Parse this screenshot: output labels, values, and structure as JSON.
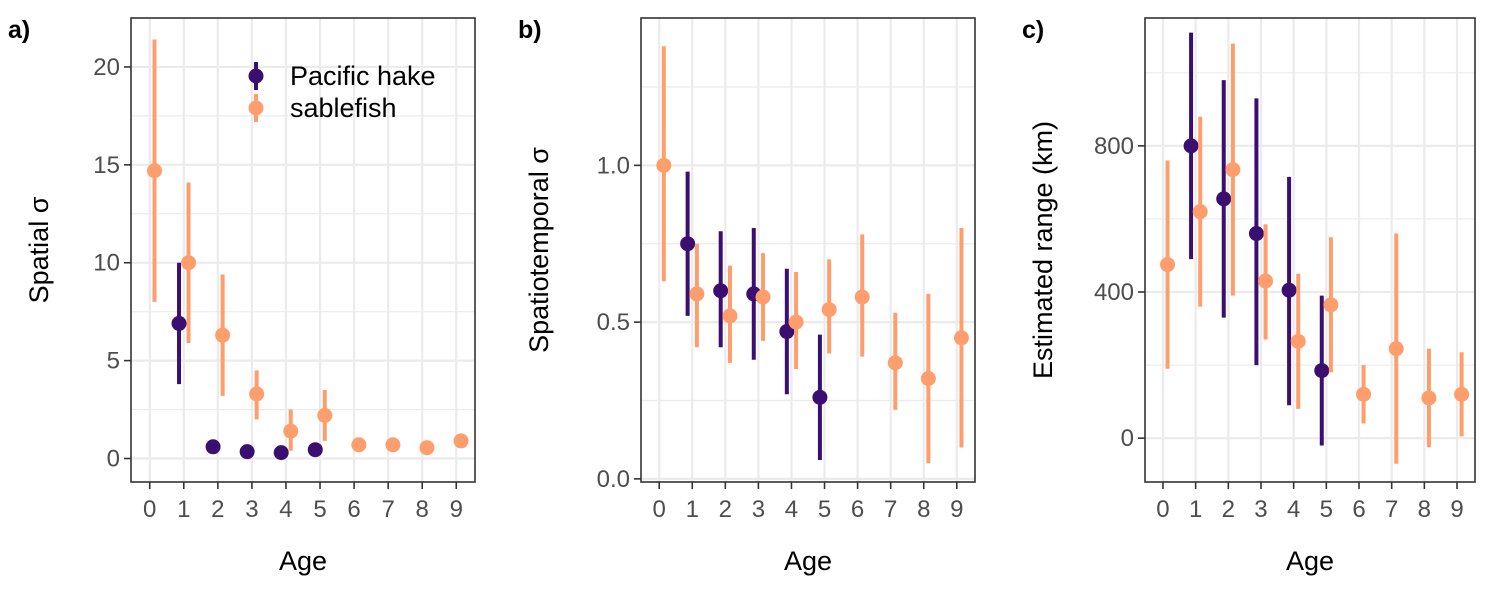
{
  "colors": {
    "hake": "#3b0f70",
    "sablefish": "#fd9e6c",
    "grid": "#ebebeb",
    "border": "#333333"
  },
  "legend": {
    "position": "top-right",
    "items": [
      {
        "label": "Pacific hake",
        "color": "#3b0f70"
      },
      {
        "label": "sablefish",
        "color": "#fd9e6c"
      }
    ]
  },
  "chart_data": [
    {
      "type": "scatter",
      "panel_label": "a)",
      "xlabel": "Age",
      "ylabel": "Spatial σ",
      "xlim": [
        -0.55,
        9.55
      ],
      "ylim": [
        -1.2,
        22.5
      ],
      "x_ticks": [
        "0",
        "1",
        "2",
        "3",
        "4",
        "5",
        "6",
        "7",
        "8",
        "9"
      ],
      "y_ticks": [
        {
          "value": 0,
          "label": "0"
        },
        {
          "value": 5,
          "label": "5"
        },
        {
          "value": 10,
          "label": "10"
        },
        {
          "value": 15,
          "label": "15"
        },
        {
          "value": 20,
          "label": "20"
        }
      ],
      "grid": true,
      "legend": true,
      "series": [
        {
          "name": "Pacific hake",
          "color": "#3b0f70",
          "points": [
            {
              "x": 1,
              "y": 6.9,
              "lo": 3.8,
              "hi": 10.0
            },
            {
              "x": 2,
              "y": 0.6
            },
            {
              "x": 3,
              "y": 0.35
            },
            {
              "x": 4,
              "y": 0.3
            },
            {
              "x": 5,
              "y": 0.45
            }
          ]
        },
        {
          "name": "sablefish",
          "color": "#fd9e6c",
          "points": [
            {
              "x": 0,
              "y": 14.7,
              "lo": 8.0,
              "hi": 21.4
            },
            {
              "x": 1,
              "y": 10.0,
              "lo": 5.9,
              "hi": 14.1
            },
            {
              "x": 2,
              "y": 6.3,
              "lo": 3.2,
              "hi": 9.4
            },
            {
              "x": 3,
              "y": 3.3,
              "lo": 2.0,
              "hi": 4.5
            },
            {
              "x": 4,
              "y": 1.4,
              "lo": 0.4,
              "hi": 2.5
            },
            {
              "x": 5,
              "y": 2.2,
              "lo": 0.9,
              "hi": 3.5
            },
            {
              "x": 6,
              "y": 0.7
            },
            {
              "x": 7,
              "y": 0.7
            },
            {
              "x": 8,
              "y": 0.55
            },
            {
              "x": 9,
              "y": 0.9
            }
          ]
        }
      ]
    },
    {
      "type": "scatter",
      "panel_label": "b)",
      "xlabel": "Age",
      "ylabel": "Spatiotemporal σ",
      "xlim": [
        -0.55,
        9.55
      ],
      "ylim": [
        -0.01,
        1.47
      ],
      "x_ticks": [
        "0",
        "1",
        "2",
        "3",
        "4",
        "5",
        "6",
        "7",
        "8",
        "9"
      ],
      "y_ticks": [
        {
          "value": 0.0,
          "label": "0.0"
        },
        {
          "value": 0.5,
          "label": "0.5"
        },
        {
          "value": 1.0,
          "label": "1.0"
        }
      ],
      "grid": true,
      "legend": false,
      "series": [
        {
          "name": "Pacific hake",
          "color": "#3b0f70",
          "points": [
            {
              "x": 1,
              "y": 0.75,
              "lo": 0.52,
              "hi": 0.98
            },
            {
              "x": 2,
              "y": 0.6,
              "lo": 0.42,
              "hi": 0.79
            },
            {
              "x": 3,
              "y": 0.59,
              "lo": 0.38,
              "hi": 0.8
            },
            {
              "x": 4,
              "y": 0.47,
              "lo": 0.27,
              "hi": 0.67
            },
            {
              "x": 5,
              "y": 0.26,
              "lo": 0.06,
              "hi": 0.46
            }
          ]
        },
        {
          "name": "sablefish",
          "color": "#fd9e6c",
          "points": [
            {
              "x": 0,
              "y": 1.0,
              "lo": 0.63,
              "hi": 1.38
            },
            {
              "x": 1,
              "y": 0.59,
              "lo": 0.42,
              "hi": 0.75
            },
            {
              "x": 2,
              "y": 0.52,
              "lo": 0.37,
              "hi": 0.68
            },
            {
              "x": 3,
              "y": 0.58,
              "lo": 0.44,
              "hi": 0.72
            },
            {
              "x": 4,
              "y": 0.5,
              "lo": 0.35,
              "hi": 0.66
            },
            {
              "x": 5,
              "y": 0.54,
              "lo": 0.4,
              "hi": 0.7
            },
            {
              "x": 6,
              "y": 0.58,
              "lo": 0.39,
              "hi": 0.78
            },
            {
              "x": 7,
              "y": 0.37,
              "lo": 0.22,
              "hi": 0.53
            },
            {
              "x": 8,
              "y": 0.32,
              "lo": 0.05,
              "hi": 0.59
            },
            {
              "x": 9,
              "y": 0.45,
              "lo": 0.1,
              "hi": 0.8
            }
          ]
        }
      ]
    },
    {
      "type": "scatter",
      "panel_label": "c)",
      "xlabel": "Age",
      "ylabel": "Estimated range (km)",
      "xlim": [
        -0.55,
        9.55
      ],
      "ylim": [
        -120,
        1150
      ],
      "x_ticks": [
        "0",
        "1",
        "2",
        "3",
        "4",
        "5",
        "6",
        "7",
        "8",
        "9"
      ],
      "y_ticks": [
        {
          "value": 0,
          "label": "0"
        },
        {
          "value": 400,
          "label": "400"
        },
        {
          "value": 800,
          "label": "800"
        }
      ],
      "grid": true,
      "legend": false,
      "series": [
        {
          "name": "Pacific hake",
          "color": "#3b0f70",
          "points": [
            {
              "x": 1,
              "y": 800,
              "lo": 490,
              "hi": 1110
            },
            {
              "x": 2,
              "y": 655,
              "lo": 330,
              "hi": 980
            },
            {
              "x": 3,
              "y": 560,
              "lo": 200,
              "hi": 930
            },
            {
              "x": 4,
              "y": 405,
              "lo": 90,
              "hi": 715
            },
            {
              "x": 5,
              "y": 185,
              "lo": -20,
              "hi": 390
            }
          ]
        },
        {
          "name": "sablefish",
          "color": "#fd9e6c",
          "points": [
            {
              "x": 0,
              "y": 475,
              "lo": 190,
              "hi": 760
            },
            {
              "x": 1,
              "y": 620,
              "lo": 360,
              "hi": 880
            },
            {
              "x": 2,
              "y": 735,
              "lo": 390,
              "hi": 1080
            },
            {
              "x": 3,
              "y": 430,
              "lo": 270,
              "hi": 585
            },
            {
              "x": 4,
              "y": 265,
              "lo": 80,
              "hi": 450
            },
            {
              "x": 5,
              "y": 365,
              "lo": 180,
              "hi": 550
            },
            {
              "x": 6,
              "y": 120,
              "lo": 40,
              "hi": 200
            },
            {
              "x": 7,
              "y": 245,
              "lo": -70,
              "hi": 560
            },
            {
              "x": 8,
              "y": 110,
              "lo": -25,
              "hi": 245
            },
            {
              "x": 9,
              "y": 120,
              "lo": 5,
              "hi": 235
            }
          ]
        }
      ]
    }
  ]
}
